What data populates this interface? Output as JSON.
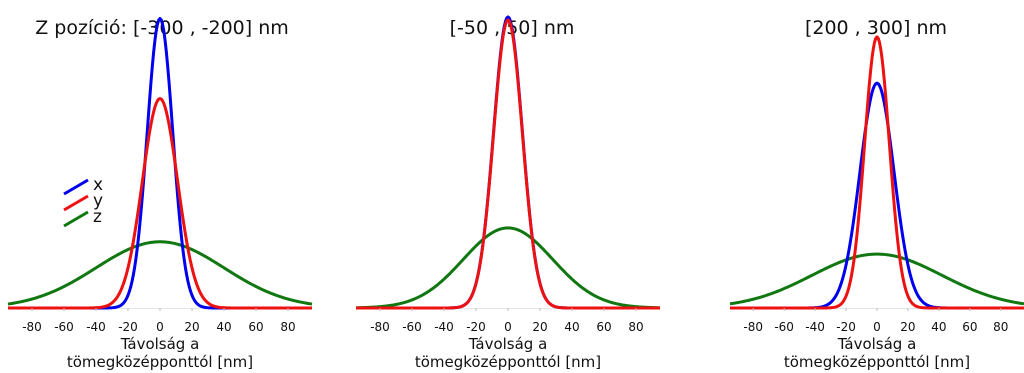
{
  "colors": {
    "x": "#0000ee",
    "y": "#ee1111",
    "z": "#117711"
  },
  "legend": {
    "x": "x",
    "y": "y",
    "z": "z"
  },
  "chart_data": [
    {
      "type": "line",
      "title": "Z pozíció: [-300 , -200] nm",
      "xlabel_line1": "Távolság a",
      "xlabel_line2": "tömegközépponttól [nm]",
      "xlim": [
        -95,
        95
      ],
      "ticks": [
        "-80",
        "-60",
        "-40",
        "-20",
        "0",
        "20",
        "40",
        "60",
        "80"
      ],
      "tick_values": [
        -80,
        -60,
        -40,
        -20,
        0,
        20,
        40,
        60,
        80
      ],
      "ylim": [
        0,
        1
      ],
      "legend_position": "left",
      "series": [
        {
          "name": "x",
          "color_key": "x",
          "peak": 0.94,
          "sigma": 8
        },
        {
          "name": "y",
          "color_key": "y",
          "peak": 0.68,
          "sigma": 11
        },
        {
          "name": "z",
          "color_key": "z",
          "peak": 0.215,
          "sigma": 40
        }
      ]
    },
    {
      "type": "line",
      "title": "[-50 , 50] nm",
      "xlabel_line1": "Távolság a",
      "xlabel_line2": "tömegközépponttól [nm]",
      "xlim": [
        -95,
        95
      ],
      "ticks": [
        "-80",
        "-60",
        "-40",
        "-20",
        "0",
        "20",
        "40",
        "60",
        "80"
      ],
      "tick_values": [
        -80,
        -60,
        -40,
        -20,
        0,
        20,
        40,
        60,
        80
      ],
      "ylim": [
        0,
        1
      ],
      "series": [
        {
          "name": "x",
          "color_key": "x",
          "peak": 0.945,
          "sigma": 9
        },
        {
          "name": "y",
          "color_key": "y",
          "peak": 0.935,
          "sigma": 9
        },
        {
          "name": "z",
          "color_key": "z",
          "peak": 0.26,
          "sigma": 28
        }
      ]
    },
    {
      "type": "line",
      "title": "[200 , 300] nm",
      "xlabel_line1": "Távolság a",
      "xlabel_line2": "tömegközépponttól [nm]",
      "xlim": [
        -95,
        95
      ],
      "ticks": [
        "-80",
        "-60",
        "-40",
        "-20",
        "0",
        "20",
        "40",
        "60",
        "80"
      ],
      "tick_values": [
        -80,
        -60,
        -40,
        -20,
        0,
        20,
        40,
        60,
        80
      ],
      "ylim": [
        0,
        1
      ],
      "series": [
        {
          "name": "x",
          "color_key": "x",
          "peak": 0.73,
          "sigma": 11
        },
        {
          "name": "y",
          "color_key": "y",
          "peak": 0.88,
          "sigma": 8
        },
        {
          "name": "z",
          "color_key": "z",
          "peak": 0.175,
          "sigma": 42
        }
      ]
    }
  ]
}
